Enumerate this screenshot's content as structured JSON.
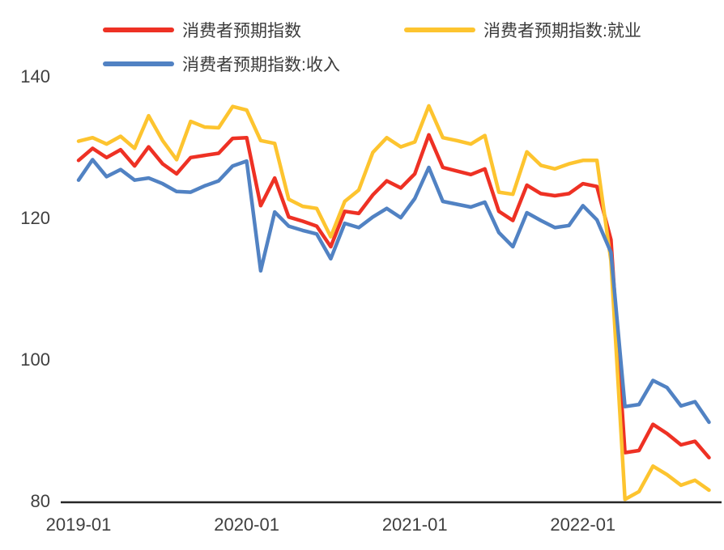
{
  "chart_data": {
    "type": "line",
    "title": "",
    "xlabel": "",
    "ylabel": "",
    "grid": false,
    "legend_position": "top",
    "background": "#ffffff",
    "axis_color": "#262626",
    "text_color": "#3f3f3f",
    "ylim": [
      80,
      140
    ],
    "y_ticks": [
      140,
      120,
      100,
      80
    ],
    "x_tick_labels": [
      "2019-01",
      "2020-01",
      "2021-01",
      "2022-01"
    ],
    "x": [
      "2019-01",
      "2019-02",
      "2019-03",
      "2019-04",
      "2019-05",
      "2019-06",
      "2019-07",
      "2019-08",
      "2019-09",
      "2019-10",
      "2019-11",
      "2019-12",
      "2020-01",
      "2020-02",
      "2020-03",
      "2020-04",
      "2020-05",
      "2020-06",
      "2020-07",
      "2020-08",
      "2020-09",
      "2020-10",
      "2020-11",
      "2020-12",
      "2021-01",
      "2021-02",
      "2021-03",
      "2021-04",
      "2021-05",
      "2021-06",
      "2021-07",
      "2021-08",
      "2021-09",
      "2021-10",
      "2021-11",
      "2021-12",
      "2022-01",
      "2022-02",
      "2022-03",
      "2022-04",
      "2022-05",
      "2022-06",
      "2022-07",
      "2022-08",
      "2022-09",
      "2022-10"
    ],
    "series": [
      {
        "name": "消费者预期指数",
        "color": "#ee3124",
        "values": [
          128.2,
          129.9,
          128.6,
          129.7,
          127.4,
          130.1,
          127.7,
          126.3,
          128.6,
          128.9,
          129.2,
          131.3,
          131.4,
          121.8,
          125.7,
          120.2,
          119.6,
          118.9,
          116.0,
          121.0,
          120.7,
          123.3,
          125.3,
          124.3,
          126.3,
          131.8,
          127.2,
          126.7,
          126.2,
          127.0,
          121.0,
          119.7,
          124.7,
          123.5,
          123.2,
          123.5,
          124.9,
          124.5,
          117.0,
          86.9,
          87.2,
          90.9,
          89.6,
          88.0,
          88.5,
          86.2
        ]
      },
      {
        "name": "消费者预期指数:就业",
        "color": "#fdc42f",
        "values": [
          130.9,
          131.4,
          130.5,
          131.6,
          129.9,
          134.5,
          131.0,
          128.3,
          133.7,
          132.9,
          132.8,
          135.8,
          135.3,
          131.0,
          130.6,
          122.7,
          121.7,
          121.4,
          117.4,
          122.4,
          124.0,
          129.3,
          131.4,
          130.1,
          130.8,
          135.9,
          131.4,
          131.0,
          130.5,
          131.7,
          123.7,
          123.4,
          129.4,
          127.5,
          127.0,
          127.7,
          128.2,
          128.2,
          114.0,
          80.3,
          81.4,
          85.0,
          83.8,
          82.3,
          83.0,
          81.6
        ]
      },
      {
        "name": "消费者预期指数:收入",
        "color": "#5182c3",
        "values": [
          125.4,
          128.3,
          125.9,
          126.9,
          125.4,
          125.7,
          124.9,
          123.8,
          123.7,
          124.6,
          125.3,
          127.4,
          128.1,
          112.6,
          120.9,
          118.9,
          118.3,
          117.8,
          114.3,
          119.3,
          118.7,
          120.2,
          121.4,
          120.1,
          122.8,
          127.2,
          122.4,
          122.0,
          121.6,
          122.3,
          118.0,
          116.0,
          120.8,
          119.7,
          118.7,
          119.0,
          121.8,
          119.8,
          115.2,
          93.4,
          93.7,
          97.1,
          96.1,
          93.5,
          94.1,
          91.2
        ]
      }
    ]
  }
}
